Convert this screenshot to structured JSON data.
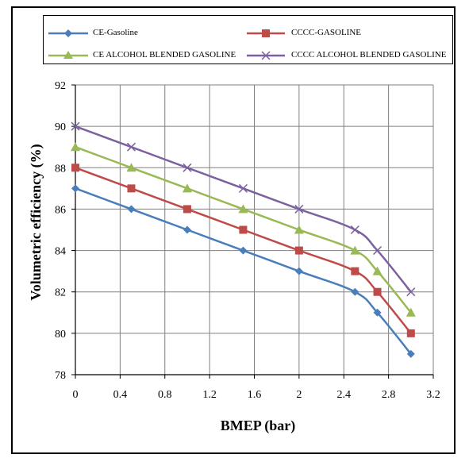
{
  "chart_data": {
    "type": "line",
    "xlabel": "BMEP (bar)",
    "ylabel": "Volumetric efficiency (%)",
    "xlim": [
      0,
      3.2
    ],
    "ylim": [
      78,
      92
    ],
    "x_ticks": [
      "0",
      "0.4",
      "0.8",
      "1.2",
      "1.6",
      "2",
      "2.4",
      "2.8",
      "3.2"
    ],
    "y_ticks": [
      "78",
      "80",
      "82",
      "84",
      "86",
      "88",
      "90",
      "92"
    ],
    "grid": "both",
    "legend_position": "top",
    "x": [
      0,
      0.5,
      1,
      1.5,
      2,
      2.5,
      2.7,
      3
    ],
    "series": [
      {
        "name": "CE-Gasoline",
        "color": "#4a7ebb",
        "marker": "diamond",
        "values": [
          87,
          86,
          85,
          84,
          83,
          82,
          81,
          79
        ]
      },
      {
        "name": "CCCC-GASOLINE",
        "color": "#be4b48",
        "marker": "square",
        "values": [
          88,
          87,
          86,
          85,
          84,
          83,
          82,
          80
        ]
      },
      {
        "name": "CE ALCOHOL BLENDED GASOLINE",
        "color": "#98b954",
        "marker": "triangle",
        "values": [
          89,
          88,
          87,
          86,
          85,
          84,
          83,
          81
        ]
      },
      {
        "name": "CCCC ALCOHOL BLENDED GASOLINE",
        "color": "#7d60a0",
        "marker": "x",
        "values": [
          90,
          89,
          88,
          87,
          86,
          85,
          84,
          82
        ]
      }
    ]
  }
}
